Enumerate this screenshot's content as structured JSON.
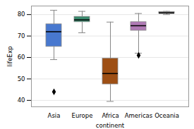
{
  "chart_data": {
    "type": "box",
    "xlabel": "continent",
    "ylabel": "lifeExp",
    "categories": [
      "Asia",
      "Europe",
      "Africa",
      "Americas",
      "Oceania"
    ],
    "whislo": [
      59.0,
      71.5,
      39.5,
      62.0,
      80.0
    ],
    "q1": [
      65.0,
      76.5,
      47.5,
      72.5,
      80.5
    ],
    "med": [
      72.0,
      77.5,
      52.5,
      74.8,
      80.7
    ],
    "q3": [
      75.5,
      79.0,
      59.5,
      76.5,
      81.2
    ],
    "whishi": [
      82.0,
      81.5,
      76.5,
      80.5,
      81.5
    ],
    "fliers": [
      [
        44.0
      ],
      [],
      [],
      [
        61.0
      ],
      []
    ],
    "colors": [
      "#4878cf",
      "#3a8a6e",
      "#9e4f14",
      "#b07ab5",
      "#5a5a5a"
    ],
    "marker": "diamond",
    "ylim": [
      37,
      84
    ],
    "yticks": [
      40,
      50,
      60,
      70,
      80
    ],
    "grid": true
  }
}
